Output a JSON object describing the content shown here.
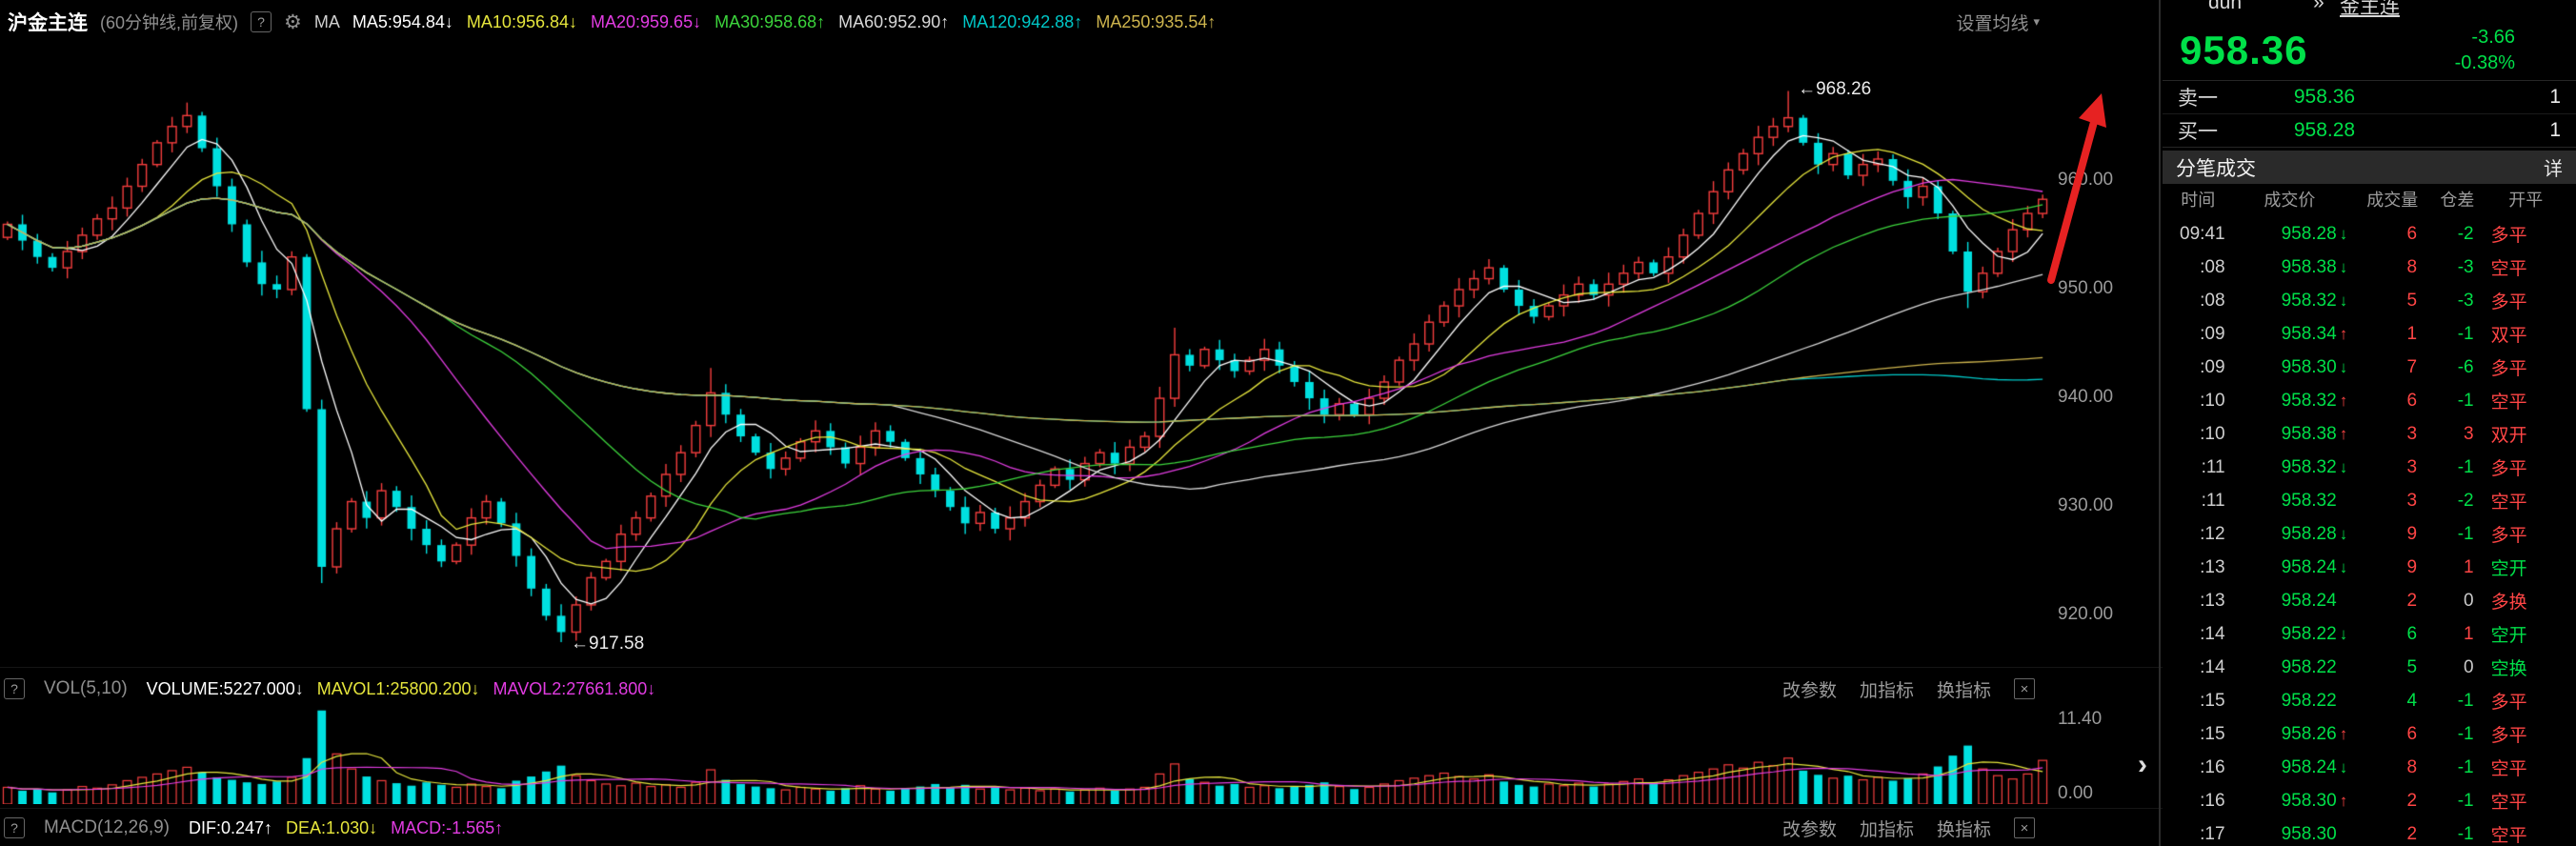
{
  "icons": {
    "help": "?",
    "gear": "⚙",
    "caret_down": "▾",
    "close": "×",
    "chevrons": "»",
    "collapse": "›",
    "up_arrow": "↑",
    "down_arrow": "↓"
  },
  "colors": {
    "green": "#00e049",
    "red": "#ff4545",
    "neutral": "#c8c8c8",
    "big_green": "#00e049"
  },
  "topbar": {
    "title": "沪金主连",
    "period": "(60分钟线,前复权)",
    "ma_label": "MA",
    "settings_label": "设置均线",
    "ma_items": [
      {
        "id": "ma5-value",
        "label": "MA5:954.84",
        "dir": "down",
        "color": "#ffffff"
      },
      {
        "id": "ma10-value",
        "label": "MA10:956.84",
        "dir": "down",
        "color": "#e6e63c"
      },
      {
        "id": "ma20-value",
        "label": "MA20:959.65",
        "dir": "down",
        "color": "#e23ce2"
      },
      {
        "id": "ma30-value",
        "label": "MA30:958.68",
        "dir": "up",
        "color": "#3cd43c"
      },
      {
        "id": "ma60-value",
        "label": "MA60:952.90",
        "dir": "up",
        "color": "#d8d8d8"
      },
      {
        "id": "ma120-value",
        "label": "MA120:942.88",
        "dir": "up",
        "color": "#00c8c8"
      },
      {
        "id": "ma250-value",
        "label": "MA250:935.54",
        "dir": "up",
        "color": "#cdb44d"
      }
    ]
  },
  "volume_header": {
    "name": "VOL(5,10)",
    "items": [
      {
        "id": "volume-value",
        "label": "VOLUME:5227.000",
        "dir": "down",
        "color": "#ffffff"
      },
      {
        "id": "mavol1-value",
        "label": "MAVOL1:25800.200",
        "dir": "down",
        "color": "#e6e63c"
      },
      {
        "id": "mavol2-value",
        "label": "MAVOL2:27661.800",
        "dir": "down",
        "color": "#e23ce2"
      }
    ],
    "links": [
      {
        "id": "change-params-link",
        "label": "改参数"
      },
      {
        "id": "add-indicator-link",
        "label": "加指标"
      },
      {
        "id": "switch-indicator-link",
        "label": "换指标"
      }
    ]
  },
  "macd_header": {
    "name": "MACD(12,26,9)",
    "items": [
      {
        "id": "dif-value",
        "label": "DIF:0.247",
        "dir": "up",
        "color": "#ffffff"
      },
      {
        "id": "dea-value",
        "label": "DEA:1.030",
        "dir": "down",
        "color": "#e6e63c"
      },
      {
        "id": "macd-value",
        "label": "MACD:-1.565",
        "dir": "up",
        "color": "#e23ce2"
      }
    ],
    "links": [
      {
        "id": "change-params-link",
        "label": "改参数"
      },
      {
        "id": "add-indicator-link",
        "label": "加指标"
      },
      {
        "id": "switch-indicator-link",
        "label": "换指标"
      }
    ]
  },
  "annotations": {
    "high_label": "←968.26",
    "low_label": "←917.58"
  },
  "panel": {
    "top_fragment": "dun",
    "top_link": "金主连",
    "last": "958.36",
    "change": "-3.66",
    "change_pct": "-0.38%",
    "ask_label": "卖一",
    "ask_price": "958.36",
    "ask_qty": "1",
    "bid_label": "买一",
    "bid_price": "958.28",
    "bid_qty": "1",
    "ticks_title": "分笔成交",
    "ticks_more": "详",
    "table_headers": [
      "时间",
      "成交价",
      "成交量",
      "仓差",
      "开平"
    ],
    "rows": [
      {
        "t": "09:41",
        "p": "958.28",
        "a": "down",
        "v": "6",
        "vc": "r",
        "d": "-2",
        "dc": "g",
        "f": "多平",
        "fc": "r"
      },
      {
        "t": ":08",
        "p": "958.38",
        "a": "down",
        "v": "8",
        "vc": "r",
        "d": "-3",
        "dc": "g",
        "f": "空平",
        "fc": "r"
      },
      {
        "t": ":08",
        "p": "958.32",
        "a": "down",
        "v": "5",
        "vc": "r",
        "d": "-3",
        "dc": "g",
        "f": "多平",
        "fc": "r"
      },
      {
        "t": ":09",
        "p": "958.34",
        "a": "up",
        "v": "1",
        "vc": "r",
        "d": "-1",
        "dc": "g",
        "f": "双平",
        "fc": "r"
      },
      {
        "t": ":09",
        "p": "958.30",
        "a": "down",
        "v": "7",
        "vc": "r",
        "d": "-6",
        "dc": "g",
        "f": "多平",
        "fc": "r"
      },
      {
        "t": ":10",
        "p": "958.32",
        "a": "up",
        "v": "6",
        "vc": "r",
        "d": "-1",
        "dc": "g",
        "f": "空平",
        "fc": "r"
      },
      {
        "t": ":10",
        "p": "958.38",
        "a": "up",
        "v": "3",
        "vc": "r",
        "d": "3",
        "dc": "r",
        "f": "双开",
        "fc": "r"
      },
      {
        "t": ":11",
        "p": "958.32",
        "a": "down",
        "v": "3",
        "vc": "r",
        "d": "-1",
        "dc": "g",
        "f": "多平",
        "fc": "r"
      },
      {
        "t": ":11",
        "p": "958.32",
        "a": "",
        "v": "3",
        "vc": "r",
        "d": "-2",
        "dc": "g",
        "f": "空平",
        "fc": "r"
      },
      {
        "t": ":12",
        "p": "958.28",
        "a": "down",
        "v": "9",
        "vc": "r",
        "d": "-1",
        "dc": "g",
        "f": "多平",
        "fc": "r"
      },
      {
        "t": ":13",
        "p": "958.24",
        "a": "down",
        "v": "9",
        "vc": "r",
        "d": "1",
        "dc": "r",
        "f": "空开",
        "fc": "g"
      },
      {
        "t": ":13",
        "p": "958.24",
        "a": "",
        "v": "2",
        "vc": "r",
        "d": "0",
        "dc": "w",
        "f": "多换",
        "fc": "r"
      },
      {
        "t": ":14",
        "p": "958.22",
        "a": "down",
        "v": "6",
        "vc": "g",
        "d": "1",
        "dc": "r",
        "f": "空开",
        "fc": "g"
      },
      {
        "t": ":14",
        "p": "958.22",
        "a": "",
        "v": "5",
        "vc": "g",
        "d": "0",
        "dc": "w",
        "f": "空换",
        "fc": "g"
      },
      {
        "t": ":15",
        "p": "958.22",
        "a": "",
        "v": "4",
        "vc": "g",
        "d": "-1",
        "dc": "g",
        "f": "多平",
        "fc": "r"
      },
      {
        "t": ":15",
        "p": "958.26",
        "a": "up",
        "v": "6",
        "vc": "r",
        "d": "-1",
        "dc": "g",
        "f": "多平",
        "fc": "r"
      },
      {
        "t": ":16",
        "p": "958.24",
        "a": "down",
        "v": "8",
        "vc": "r",
        "d": "-1",
        "dc": "g",
        "f": "空平",
        "fc": "r"
      },
      {
        "t": ":16",
        "p": "958.30",
        "a": "up",
        "v": "2",
        "vc": "r",
        "d": "-1",
        "dc": "g",
        "f": "空平",
        "fc": "r"
      },
      {
        "t": ":17",
        "p": "958.30",
        "a": "",
        "v": "2",
        "vc": "r",
        "d": "-1",
        "dc": "g",
        "f": "空平",
        "fc": "r"
      }
    ]
  },
  "chart_data": {
    "type": "candlestick",
    "title": "沪金主连 60分钟K线",
    "y_ticks": [
      "960.00",
      "950.00",
      "940.00",
      "930.00",
      "920.00"
    ],
    "y_range": [
      915.3,
      972.6
    ],
    "first_open": 954.8,
    "marked_high": 968.26,
    "marked_high_index": 119,
    "marked_low": 917.58,
    "marked_low_index": 37,
    "colors": {
      "up": "#f53d3d",
      "down": "#00e0e0"
    },
    "ma_lines": [
      {
        "window": 5,
        "color": "#ffffff"
      },
      {
        "window": 10,
        "color": "#e6e63c"
      },
      {
        "window": 20,
        "color": "#e23ce2"
      },
      {
        "window": 30,
        "color": "#3cd43c"
      },
      {
        "window": 60,
        "color": "#d8d8d8"
      },
      {
        "window": 120,
        "color": "#00c8c8"
      },
      {
        "window": 250,
        "color": "#cdb44d"
      }
    ],
    "closes": [
      956,
      954.5,
      953,
      952,
      953.5,
      955,
      956.5,
      957.5,
      959.5,
      961.5,
      963.5,
      965,
      966,
      963,
      959.5,
      956,
      952.5,
      950.5,
      950,
      953,
      939,
      924.5,
      928,
      930.5,
      929,
      931.5,
      930,
      928,
      926.5,
      925,
      926.5,
      929,
      930.5,
      928.5,
      925.5,
      922.5,
      920,
      918.5,
      921,
      923.5,
      925,
      927.5,
      929,
      931,
      933,
      935,
      937.5,
      940.5,
      938.5,
      936.5,
      935,
      933.5,
      934.5,
      936,
      937,
      935.5,
      934,
      935.5,
      937,
      936,
      934.5,
      933,
      931.5,
      930,
      928.5,
      929.5,
      928,
      929,
      930.5,
      932,
      933.5,
      932.5,
      934,
      935,
      934,
      935.5,
      936.5,
      940,
      944,
      943,
      944.5,
      943.5,
      942.5,
      943.5,
      944.5,
      943,
      941.5,
      940,
      938.5,
      939.5,
      938.5,
      940,
      941.5,
      943.5,
      945,
      947,
      948.5,
      950,
      951,
      952,
      950,
      948.5,
      947.5,
      948.5,
      949.5,
      950.5,
      949.5,
      950.5,
      951.5,
      952.5,
      951.5,
      953,
      955,
      957,
      959,
      961,
      962.5,
      964,
      965,
      965.8,
      963.5,
      961.5,
      962.5,
      960.5,
      961.5,
      962,
      960,
      958.5,
      959.5,
      957,
      953.5,
      949.8,
      951.5,
      953.5,
      955.5,
      957,
      958.3
    ],
    "wick_overrides": {
      "12": {
        "h": 967.2
      },
      "21": {
        "l": 923.0
      },
      "37": {
        "l": 917.58
      },
      "47": {
        "h": 942.8
      },
      "78": {
        "h": 946.5
      },
      "99": {
        "h": 952.8
      },
      "119": {
        "h": 968.26
      },
      "131": {
        "l": 948.3
      }
    },
    "volume": {
      "y_max": 11.4,
      "y_ticks": [
        "11.40",
        "0.00"
      ],
      "ma_lines": [
        {
          "window": 5,
          "color": "#e6e63c"
        },
        {
          "window": 10,
          "color": "#e23ce2"
        }
      ],
      "values": [
        2.0,
        1.6,
        1.8,
        1.4,
        1.7,
        2.1,
        1.9,
        2.3,
        2.8,
        3.2,
        3.6,
        4.0,
        4.4,
        3.8,
        3.2,
        2.9,
        2.6,
        2.4,
        2.7,
        3.2,
        5.5,
        11.2,
        6.0,
        4.2,
        3.3,
        2.8,
        2.5,
        2.2,
        2.6,
        2.3,
        2.0,
        2.4,
        2.1,
        1.9,
        2.8,
        3.3,
        3.9,
        4.6,
        3.4,
        2.8,
        2.4,
        2.2,
        2.5,
        2.1,
        2.3,
        2.0,
        2.6,
        4.1,
        2.9,
        2.4,
        2.1,
        1.9,
        1.7,
        2.0,
        1.8,
        1.6,
        1.9,
        2.2,
        1.8,
        1.6,
        1.9,
        2.1,
        2.4,
        2.0,
        2.3,
        1.8,
        2.1,
        1.7,
        1.9,
        1.6,
        1.8,
        1.5,
        1.7,
        1.9,
        1.6,
        1.8,
        2.0,
        3.6,
        4.8,
        3.0,
        2.6,
        2.2,
        2.4,
        2.0,
        2.2,
        1.9,
        2.1,
        2.3,
        2.6,
        2.1,
        1.8,
        2.0,
        2.4,
        2.8,
        3.1,
        3.4,
        3.7,
        3.3,
        3.0,
        3.5,
        2.7,
        2.3,
        2.1,
        2.4,
        2.2,
        2.5,
        2.1,
        2.4,
        2.7,
        3.0,
        2.6,
        2.9,
        3.4,
        3.8,
        4.2,
        4.7,
        4.3,
        5.0,
        4.6,
        5.5,
        4.0,
        3.5,
        3.1,
        3.4,
        2.9,
        3.2,
        2.8,
        3.1,
        3.6,
        4.5,
        5.8,
        7.0,
        4.2,
        3.4,
        3.0,
        3.6,
        5.227
      ]
    }
  }
}
